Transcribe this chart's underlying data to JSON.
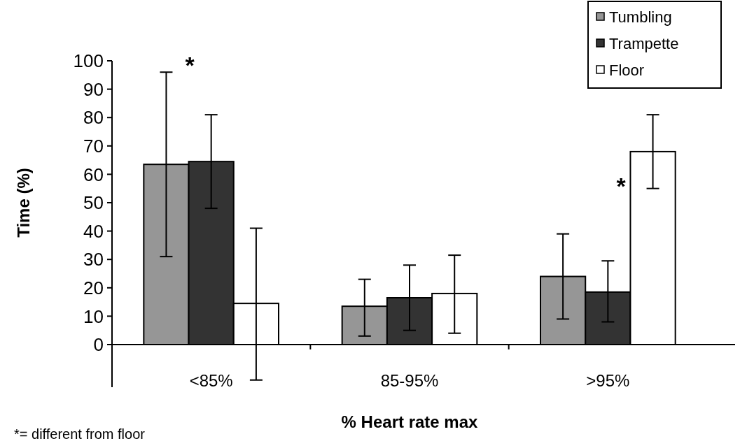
{
  "chart_data": {
    "type": "bar",
    "xlabel": "% Heart rate max",
    "ylabel": "Time (%)",
    "categories": [
      "<85%",
      "85-95%",
      ">95%"
    ],
    "series": [
      {
        "name": "Tumbling",
        "color": "#969696",
        "values": [
          63.5,
          13.5,
          24
        ],
        "errors": [
          [
            31,
            96
          ],
          [
            3,
            23
          ],
          [
            9,
            39
          ]
        ]
      },
      {
        "name": "Trampette",
        "color": "#333333",
        "values": [
          64.5,
          16.5,
          18.5
        ],
        "errors": [
          [
            48,
            81
          ],
          [
            5,
            28
          ],
          [
            8,
            29.5
          ]
        ]
      },
      {
        "name": "Floor",
        "color": "#ffffff",
        "values": [
          14.5,
          18,
          68
        ],
        "errors": [
          [
            -12.5,
            41
          ],
          [
            4,
            31.5
          ],
          [
            55,
            81
          ]
        ]
      }
    ],
    "ylim": [
      -15,
      100
    ],
    "yticks": [
      0,
      10,
      20,
      30,
      40,
      50,
      60,
      70,
      80,
      90,
      100
    ],
    "grid": false,
    "legend": "top right",
    "annotations": [
      "*",
      "*",
      "*= different from floor"
    ]
  }
}
